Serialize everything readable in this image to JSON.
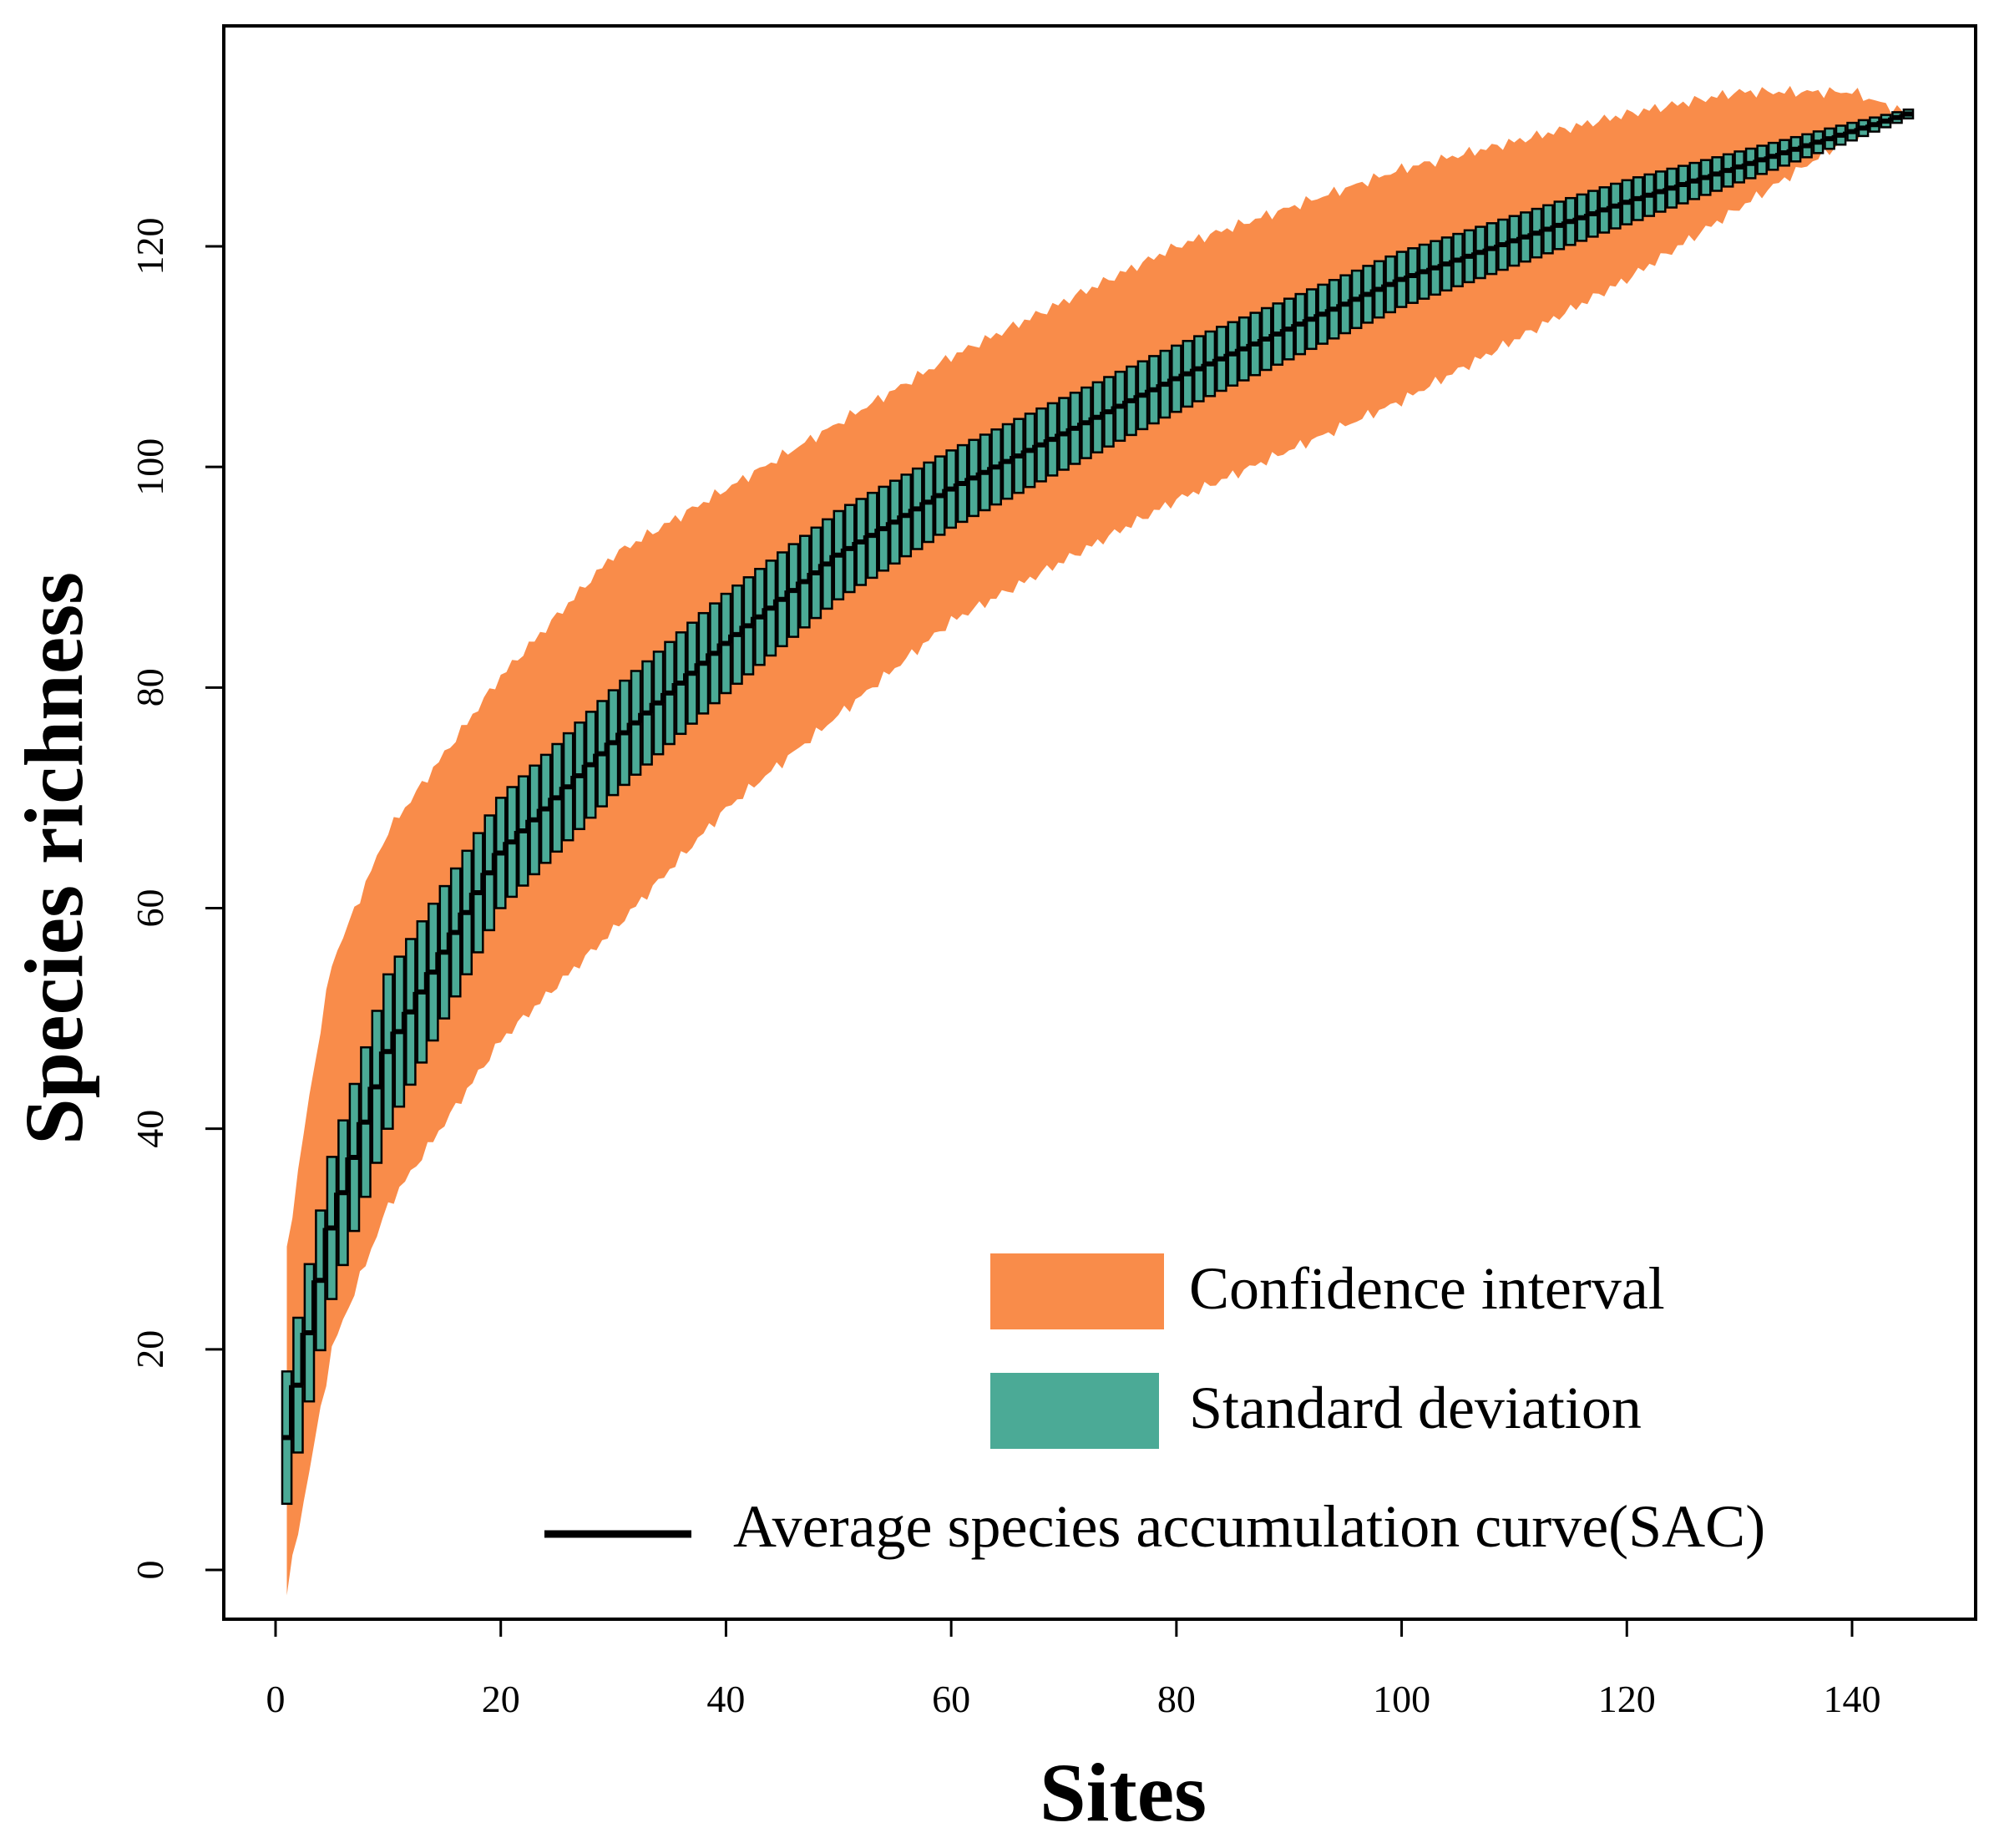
{
  "chart_data": {
    "type": "area",
    "title": "",
    "xlabel": "Sites",
    "ylabel": "Species richness",
    "xlim": [
      -5,
      148
    ],
    "ylim": [
      -4,
      141
    ],
    "xticks": [
      "0",
      "20",
      "40",
      "60",
      "80",
      "100",
      "120",
      "140"
    ],
    "yticks": [
      "0",
      "20",
      "40",
      "60",
      "80",
      "100",
      "120"
    ],
    "n_sites": 145,
    "max_richness": 132,
    "curve_model": "richness(x) = 132*(1-exp(-(x/k)^b)) fitted to mean points",
    "mean_reference_points": [
      {
        "x": 1,
        "y": 12
      },
      {
        "x": 5,
        "y": 31
      },
      {
        "x": 10,
        "y": 47
      },
      {
        "x": 20,
        "y": 65
      },
      {
        "x": 30,
        "y": 75
      },
      {
        "x": 40,
        "y": 84
      },
      {
        "x": 50,
        "y": 92
      },
      {
        "x": 60,
        "y": 98
      },
      {
        "x": 80,
        "y": 108
      },
      {
        "x": 100,
        "y": 117
      },
      {
        "x": 120,
        "y": 124
      },
      {
        "x": 145,
        "y": 132
      }
    ],
    "confidence_interval_upper_points": [
      {
        "x": 1,
        "y": 29
      },
      {
        "x": 3,
        "y": 43
      },
      {
        "x": 5,
        "y": 55
      },
      {
        "x": 10,
        "y": 67
      },
      {
        "x": 20,
        "y": 81
      },
      {
        "x": 30,
        "y": 92
      },
      {
        "x": 40,
        "y": 98
      },
      {
        "x": 60,
        "y": 110
      },
      {
        "x": 80,
        "y": 120
      },
      {
        "x": 100,
        "y": 127
      },
      {
        "x": 120,
        "y": 132
      },
      {
        "x": 130,
        "y": 134
      },
      {
        "x": 140,
        "y": 134
      },
      {
        "x": 145,
        "y": 132
      }
    ],
    "confidence_interval_lower_points": [
      {
        "x": 1,
        "y": -2
      },
      {
        "x": 3,
        "y": 9
      },
      {
        "x": 5,
        "y": 20
      },
      {
        "x": 10,
        "y": 33
      },
      {
        "x": 20,
        "y": 48
      },
      {
        "x": 30,
        "y": 58
      },
      {
        "x": 40,
        "y": 69
      },
      {
        "x": 60,
        "y": 86
      },
      {
        "x": 80,
        "y": 97
      },
      {
        "x": 100,
        "y": 106
      },
      {
        "x": 120,
        "y": 117
      },
      {
        "x": 140,
        "y": 130
      },
      {
        "x": 145,
        "y": 132
      }
    ],
    "sd_reference_points": [
      {
        "x": 1,
        "y": 6
      },
      {
        "x": 10,
        "y": 7
      },
      {
        "x": 20,
        "y": 5
      },
      {
        "x": 40,
        "y": 4.5
      },
      {
        "x": 60,
        "y": 3.5
      },
      {
        "x": 80,
        "y": 3
      },
      {
        "x": 100,
        "y": 2.5
      },
      {
        "x": 120,
        "y": 2
      },
      {
        "x": 140,
        "y": 0.8
      },
      {
        "x": 145,
        "y": 0.4
      }
    ],
    "legend": {
      "position": "bottom-right",
      "entries": [
        {
          "label": "Confidence interval",
          "kind": "fill",
          "color": "#F98C4A"
        },
        {
          "label": "Standard deviation",
          "kind": "fill",
          "color": "#4BAA96"
        },
        {
          "label": "Average species accumulation curve(SAC)",
          "kind": "line",
          "color": "#000000"
        }
      ]
    },
    "colors": {
      "confidence_interval": "#F98C4A",
      "standard_deviation": "#4BAA96",
      "mean_line": "#000000",
      "frame": "#000000"
    }
  }
}
